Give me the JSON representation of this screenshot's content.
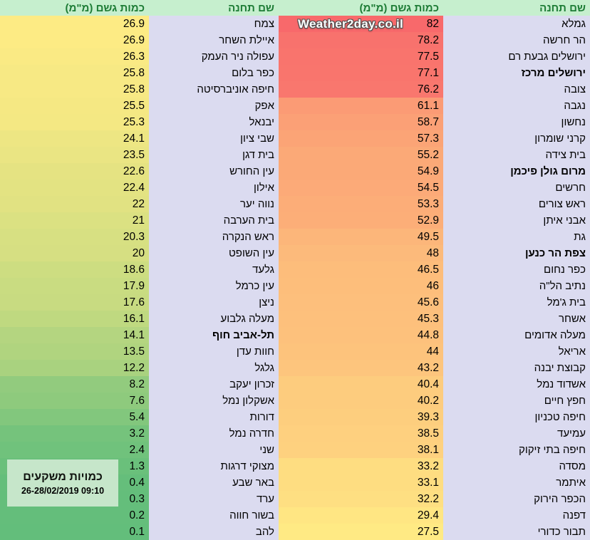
{
  "watermark": "Weather2day.co.il",
  "info_box": {
    "title": "כמויות משקעים",
    "date": "26-28/02/2019 09:10"
  },
  "headers": {
    "station": "שם תחנה",
    "amount": "כמות גשם (מ\"מ)"
  },
  "colors": {
    "header_bg": "#C6EFCE",
    "header_text": "#1E7C36",
    "station_col_bg": "#DBDBF0",
    "info_box_bg": "#C6E6CA",
    "info_box_title": "#10130f",
    "info_box_date": "#000000",
    "scale_max_color": "#F8696B",
    "scale_mid_color": "#FFEB84",
    "scale_min_color": "#63BE7B"
  },
  "chart_data": {
    "type": "table",
    "title": "כמויות משקעים",
    "subtitle": "26-28/02/2019 09:10",
    "columns_right_to_left": [
      "שם תחנה",
      "כמות גשם (מ\"מ)",
      "שם תחנה",
      "כמות גשם (מ\"מ)"
    ],
    "color_scale": {
      "min": 0.1,
      "mid": 27.2,
      "max": 82,
      "min_color": "#63BE7B",
      "mid_color": "#FFEB84",
      "max_color": "#F8696B"
    },
    "groups": [
      {
        "name": "right-pair-highest",
        "rows": [
          {
            "station": "גמלא",
            "amount": "82",
            "bold": false
          },
          {
            "station": "הר חרשה",
            "amount": "78.2",
            "bold": false
          },
          {
            "station": "ירושלים גבעת רם",
            "amount": "77.5",
            "bold": false
          },
          {
            "station": "ירושלים מרכז",
            "amount": "77.1",
            "bold": true
          },
          {
            "station": "צובה",
            "amount": "76.2",
            "bold": false
          },
          {
            "station": "נגבה",
            "amount": "61.1",
            "bold": false
          },
          {
            "station": "נחשון",
            "amount": "58.7",
            "bold": false
          },
          {
            "station": "קרני שומרון",
            "amount": "57.3",
            "bold": false
          },
          {
            "station": "בית צידה",
            "amount": "55.2",
            "bold": false
          },
          {
            "station": "מרום גולן פיכמן",
            "amount": "54.9",
            "bold": true
          },
          {
            "station": "חרשים",
            "amount": "54.5",
            "bold": false
          },
          {
            "station": "ראש צורים",
            "amount": "53.3",
            "bold": false
          },
          {
            "station": "אבני איתן",
            "amount": "52.9",
            "bold": false
          },
          {
            "station": "גת",
            "amount": "49.5",
            "bold": false
          },
          {
            "station": "צפת הר כנען",
            "amount": "48",
            "bold": true
          },
          {
            "station": "כפר נחום",
            "amount": "46.5",
            "bold": false
          },
          {
            "station": "נתיב הל\"ה",
            "amount": "46",
            "bold": false
          },
          {
            "station": "בית ג'מל",
            "amount": "45.6",
            "bold": false
          },
          {
            "station": "אשחר",
            "amount": "45.3",
            "bold": false
          },
          {
            "station": "מעלה אדומים",
            "amount": "44.8",
            "bold": false
          },
          {
            "station": "אריאל",
            "amount": "44",
            "bold": false
          },
          {
            "station": "קבוצת יבנה",
            "amount": "43.2",
            "bold": false
          },
          {
            "station": "אשדוד נמל",
            "amount": "40.4",
            "bold": false
          },
          {
            "station": "חפץ חיים",
            "amount": "40.2",
            "bold": false
          },
          {
            "station": "חיפה טכניון",
            "amount": "39.3",
            "bold": false
          },
          {
            "station": "עמיעד",
            "amount": "38.5",
            "bold": false
          },
          {
            "station": "חיפה בתי זיקוק",
            "amount": "38.1",
            "bold": false
          },
          {
            "station": "מסדה",
            "amount": "33.2",
            "bold": false
          },
          {
            "station": "איתמר",
            "amount": "33.1",
            "bold": false
          },
          {
            "station": "הכפר הירוק",
            "amount": "32.2",
            "bold": false
          },
          {
            "station": "דפנה",
            "amount": "29.4",
            "bold": false
          },
          {
            "station": "תבור כדורי",
            "amount": "27.5",
            "bold": false
          }
        ]
      },
      {
        "name": "left-pair-continued",
        "rows": [
          {
            "station": "צמח",
            "amount": "26.9",
            "bold": false
          },
          {
            "station": "איילת השחר",
            "amount": "26.9",
            "bold": false
          },
          {
            "station": "עפולה ניר העמק",
            "amount": "26.3",
            "bold": false
          },
          {
            "station": "כפר בלום",
            "amount": "25.8",
            "bold": false
          },
          {
            "station": "חיפה אוניברסיטה",
            "amount": "25.8",
            "bold": false
          },
          {
            "station": "אפק",
            "amount": "25.5",
            "bold": false
          },
          {
            "station": "יבנאל",
            "amount": "25.3",
            "bold": false
          },
          {
            "station": "שבי ציון",
            "amount": "24.1",
            "bold": false
          },
          {
            "station": "בית דגן",
            "amount": "23.5",
            "bold": false
          },
          {
            "station": "עין החורש",
            "amount": "22.6",
            "bold": false
          },
          {
            "station": "אילון",
            "amount": "22.4",
            "bold": false
          },
          {
            "station": "נווה יער",
            "amount": "22",
            "bold": false
          },
          {
            "station": "בית הערבה",
            "amount": "21",
            "bold": false
          },
          {
            "station": "ראש הנקרה",
            "amount": "20.3",
            "bold": false
          },
          {
            "station": "עין השופט",
            "amount": "20",
            "bold": false
          },
          {
            "station": "גלעד",
            "amount": "18.6",
            "bold": false
          },
          {
            "station": "עין כרמל",
            "amount": "17.9",
            "bold": false
          },
          {
            "station": "ניצן",
            "amount": "17.6",
            "bold": false
          },
          {
            "station": "מעלה גלבוע",
            "amount": "16.1",
            "bold": false
          },
          {
            "station": "תל-אביב חוף",
            "amount": "14.1",
            "bold": true
          },
          {
            "station": "חוות עדן",
            "amount": "13.5",
            "bold": false
          },
          {
            "station": "גלגל",
            "amount": "12.2",
            "bold": false
          },
          {
            "station": "זכרון יעקב",
            "amount": "8.2",
            "bold": false
          },
          {
            "station": "אשקלון נמל",
            "amount": "7.6",
            "bold": false
          },
          {
            "station": "דורות",
            "amount": "5.4",
            "bold": false
          },
          {
            "station": "חדרה נמל",
            "amount": "3.2",
            "bold": false
          },
          {
            "station": "שני",
            "amount": "2.4",
            "bold": false
          },
          {
            "station": "מצוקי דרגות",
            "amount": "1.3",
            "bold": false
          },
          {
            "station": "באר שבע",
            "amount": "0.4",
            "bold": false
          },
          {
            "station": "ערד",
            "amount": "0.3",
            "bold": false
          },
          {
            "station": "בשור חווה",
            "amount": "0.2",
            "bold": false
          },
          {
            "station": "להב",
            "amount": "0.1",
            "bold": false
          }
        ]
      }
    ]
  }
}
